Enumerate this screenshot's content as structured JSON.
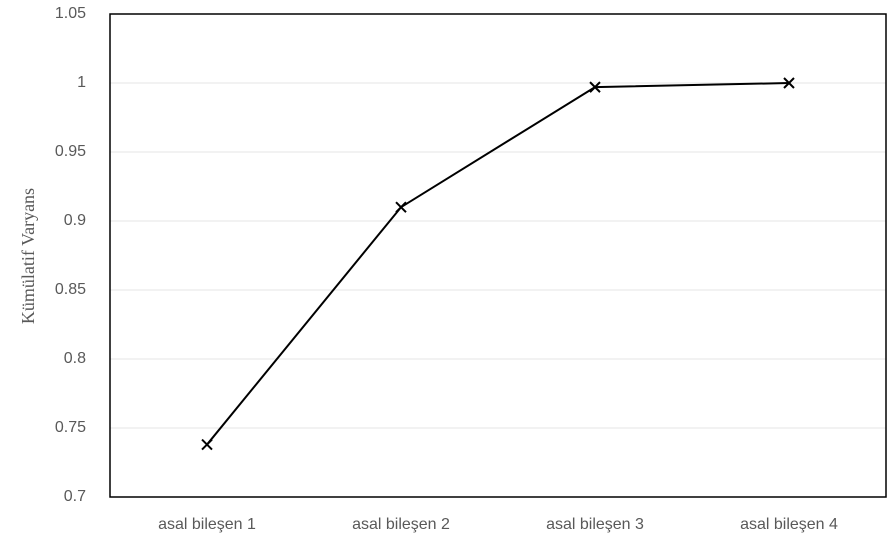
{
  "chart_data": {
    "type": "line",
    "y_label": "Kümülatif Varyans",
    "categories": [
      "asal bileşen 1",
      "asal bileşen 2",
      "asal bileşen 3",
      "asal bileşen 4"
    ],
    "values": [
      0.738,
      0.91,
      0.997,
      1
    ],
    "color": "#000000",
    "ylim": [
      0.7,
      1.05
    ],
    "yticks": [
      0.7,
      0.75,
      0.8,
      0.85,
      0.9,
      0.95,
      1,
      1.05
    ],
    "grid": true
  }
}
